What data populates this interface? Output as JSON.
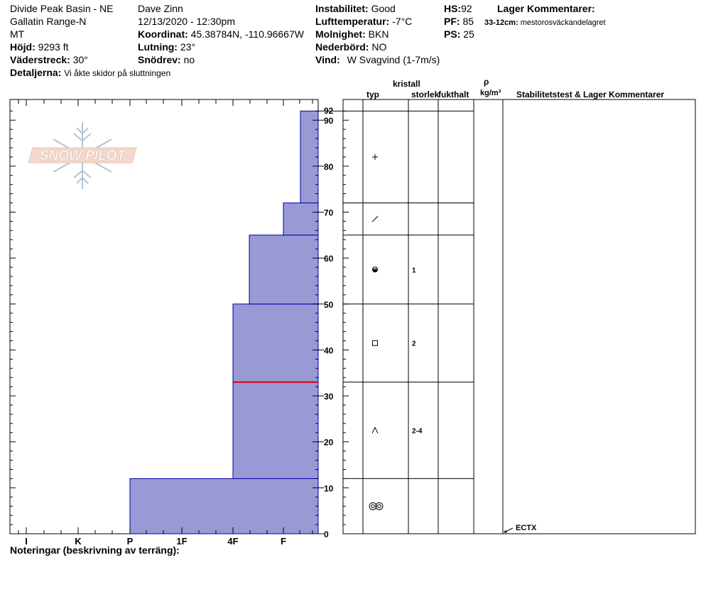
{
  "header": {
    "location": "Divide Peak Basin - NE",
    "range": "Gallatin Range-N",
    "state": "MT",
    "elevation_label": "Höjd:",
    "elevation_value": "9293 ft",
    "aspect_label": "Väderstreck:",
    "aspect_value": "30°",
    "details_label": "Detaljerna:",
    "details_value": "Vi åkte skidor på sluttningen",
    "observer": "Dave Zinn",
    "datetime": "12/13/2020 - 12:30pm",
    "coord_label": "Koordinat:",
    "coord_value": "45.38784N, -110.96667W",
    "slope_label": "Lutning:",
    "slope_value": "23°",
    "drift_label": "Snödrev:",
    "drift_value": "no",
    "stability_label": "Instabilitet:",
    "stability_value": "Good",
    "airtemp_label": "Lufttemperatur:",
    "airtemp_value": "-7°C",
    "sky_label": "Molnighet:",
    "sky_value": "BKN",
    "precip_label": "Nederbörd:",
    "precip_value": "NO",
    "wind_label": "Vind:",
    "wind_value": "W Svagvind (1-7m/s)",
    "hs_label": "HS:",
    "hs_value": "92",
    "pf_label": "PF:",
    "pf_value": "85",
    "ps_label": "PS:",
    "ps_value": "25",
    "layer_comments_title": "Lager Kommentarer:",
    "layer_comment_depth": "33-12cm:",
    "layer_comment_text": "mestorosväckandelagret"
  },
  "logo": {
    "text": "SNOW PILOT"
  },
  "columns": {
    "crystal": "kristall",
    "type": "typ",
    "size": "storlek",
    "moisture": "fukthalt",
    "rho": "ρ",
    "density_unit": "kg/m³",
    "stability": "Stabilitetstest & Lager Kommentarer"
  },
  "notes_label": "Noteringar (beskrivning av terräng):",
  "chart_data": {
    "type": "bar",
    "description_of_axes": "horizontal hardness profile vs height",
    "y_ticks": [
      0,
      10,
      20,
      30,
      40,
      50,
      60,
      70,
      80,
      90
    ],
    "ylim": [
      0,
      92
    ],
    "top_label": "92",
    "hardness_ticks": [
      "I",
      "K",
      "P",
      "1F",
      "4F",
      "F"
    ],
    "layers": [
      {
        "bottom": 0,
        "top": 12,
        "hardness": "P",
        "grain": "melt-forms",
        "size": ""
      },
      {
        "bottom": 12,
        "top": 33,
        "hardness": "4F",
        "grain": "depth-hoar",
        "size": "2-4"
      },
      {
        "bottom": 33,
        "top": 50,
        "hardness": "4F",
        "grain": "faceted",
        "size": "2"
      },
      {
        "bottom": 50,
        "top": 65,
        "hardness": "4F-F",
        "grain": "rounded-faceted",
        "size": "1"
      },
      {
        "bottom": 65,
        "top": 72,
        "hardness": "F",
        "grain": "decomposing",
        "size": ""
      },
      {
        "bottom": 72,
        "top": 92,
        "hardness": "F-",
        "grain": "new-snow",
        "size": ""
      }
    ],
    "weak_layer_height": 33,
    "test_label": "ECTX",
    "test_height": 0,
    "colors": {
      "layer_fill": "#9999d6",
      "layer_stroke": "#0000aa",
      "weak_layer": "#cc0000"
    }
  }
}
